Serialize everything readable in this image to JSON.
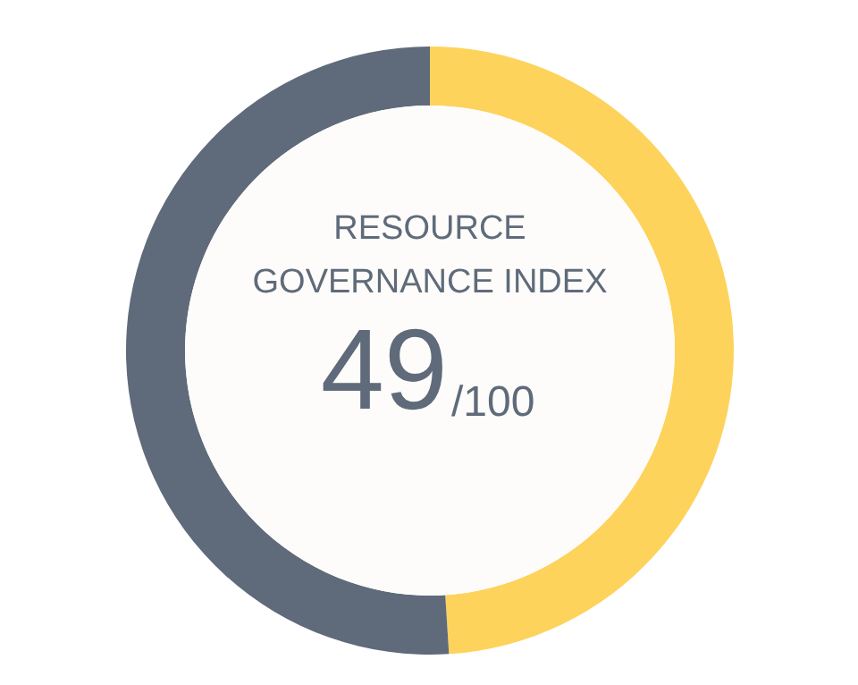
{
  "chart_data": {
    "type": "donut",
    "title": "RESOURCE GOVERNANCE INDEX",
    "categories": [
      null,
      null
    ],
    "values": [
      49,
      51
    ],
    "colors": [
      "#fdd35c",
      "#5f6b7a"
    ],
    "annotations": [
      "49",
      "/100"
    ]
  }
}
